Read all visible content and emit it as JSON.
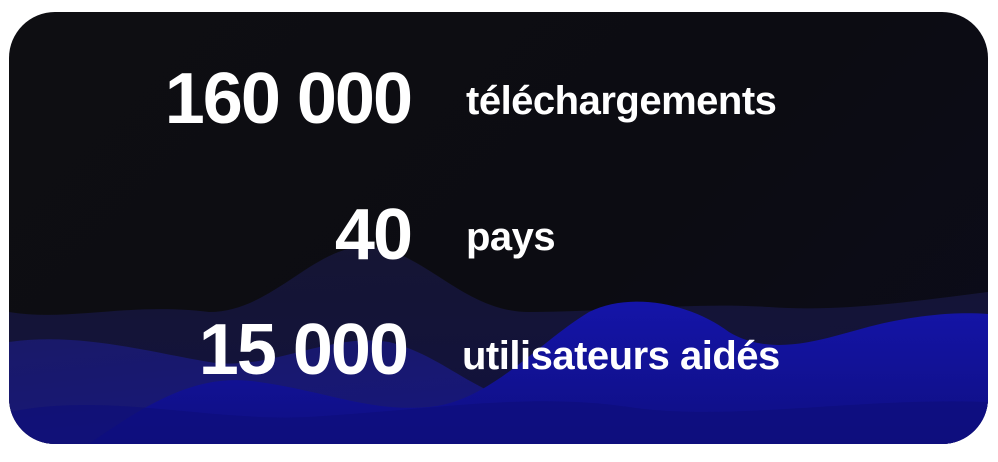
{
  "colors": {
    "card_background": "#0e0e12",
    "wave_dark": "#141438",
    "wave_mid": "#1c1c7a",
    "wave_bright": "#1212a0",
    "text": "#ffffff"
  },
  "stats": [
    {
      "number": "160 000",
      "label": "téléchargements"
    },
    {
      "number": "40",
      "label": "pays"
    },
    {
      "number": "15 000",
      "label": "utilisateurs aidés"
    }
  ]
}
